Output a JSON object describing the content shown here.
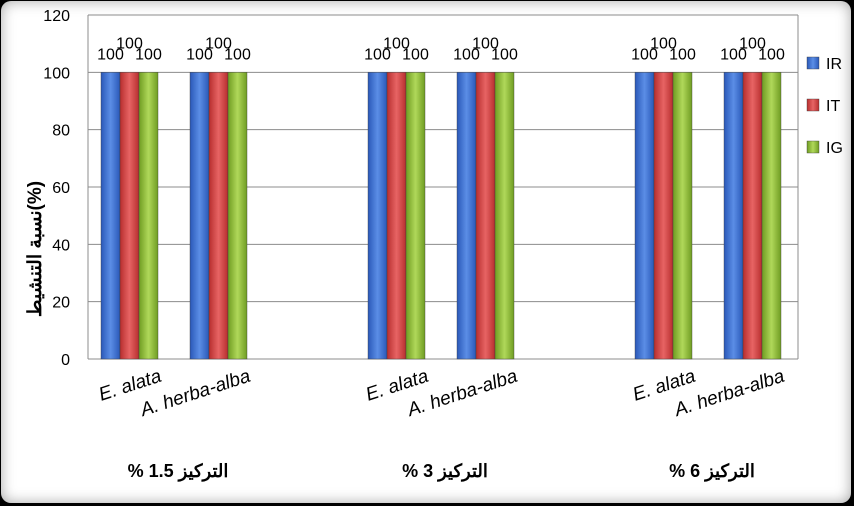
{
  "chart_data": {
    "type": "bar",
    "ylabel": "نسبة التنشيط(%)",
    "ylim": [
      0,
      120
    ],
    "yticks": [
      0,
      20,
      40,
      60,
      80,
      100,
      120
    ],
    "grid": true,
    "legend": "right",
    "groups": [
      {
        "label": "التركيز 1.5 %",
        "categories": [
          "E. alata",
          "A. herba-alba"
        ]
      },
      {
        "label": "التركيز 3 %",
        "categories": [
          "E. alata",
          "A. herba-alba"
        ]
      },
      {
        "label": "التركيز 6 %",
        "categories": [
          "E. alata",
          "A. herba-alba"
        ]
      }
    ],
    "series": [
      {
        "name": "IR",
        "color": "#3f6fd1",
        "values": [
          100,
          100,
          100,
          100,
          100,
          100
        ]
      },
      {
        "name": "IT",
        "color": "#d94a4a",
        "values": [
          100,
          100,
          100,
          100,
          100,
          100
        ]
      },
      {
        "name": "IG",
        "color": "#94c23c",
        "values": [
          100,
          100,
          100,
          100,
          100,
          100
        ]
      }
    ]
  }
}
